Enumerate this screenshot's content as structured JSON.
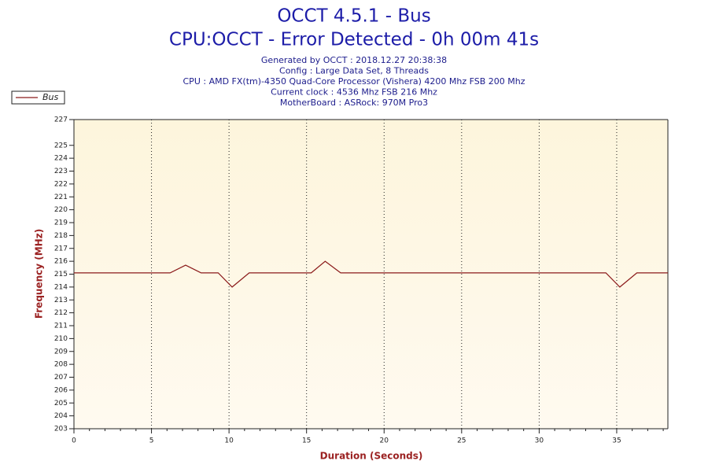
{
  "chart_data": {
    "type": "line",
    "title": "OCCT 4.5.1 - Bus",
    "subtitle": "CPU:OCCT - Error Detected - 0h 00m 41s",
    "info": [
      "Generated by OCCT : 2018.12.27 20:38:38",
      "Config : Large Data Set, 8 Threads",
      "CPU : AMD FX(tm)-4350 Quad-Core Processor (Vishera) 4200 Mhz FSB 200 Mhz",
      "Current clock : 4536 Mhz FSB 216 Mhz",
      "MotherBoard : ASRock: 970M Pro3"
    ],
    "x_label": "Duration (Seconds)",
    "y_label": "Frequency (MHz)",
    "x": [
      0,
      6.2,
      7.2,
      8.2,
      9.3,
      10.2,
      11.3,
      15.3,
      16.2,
      17.2,
      17.7,
      34.3,
      35.2,
      36.3,
      38.3
    ],
    "series": [
      {
        "name": "Bus",
        "color": "#8b1a1a",
        "values": [
          215.1,
          215.1,
          215.7,
          215.1,
          215.1,
          214.0,
          215.1,
          215.1,
          216.0,
          215.1,
          215.1,
          215.1,
          214.0,
          215.1,
          215.1
        ]
      }
    ],
    "xlim": [
      0,
      38.3
    ],
    "xticks": [
      0,
      5,
      10,
      15,
      20,
      25,
      30,
      35
    ],
    "ylim": [
      203,
      227
    ],
    "yticks": [
      203,
      204,
      205,
      206,
      207,
      208,
      209,
      210,
      211,
      212,
      213,
      214,
      215,
      216,
      217,
      218,
      219,
      220,
      221,
      222,
      223,
      224,
      225,
      227
    ],
    "grid": "x",
    "legend": "top-left"
  }
}
